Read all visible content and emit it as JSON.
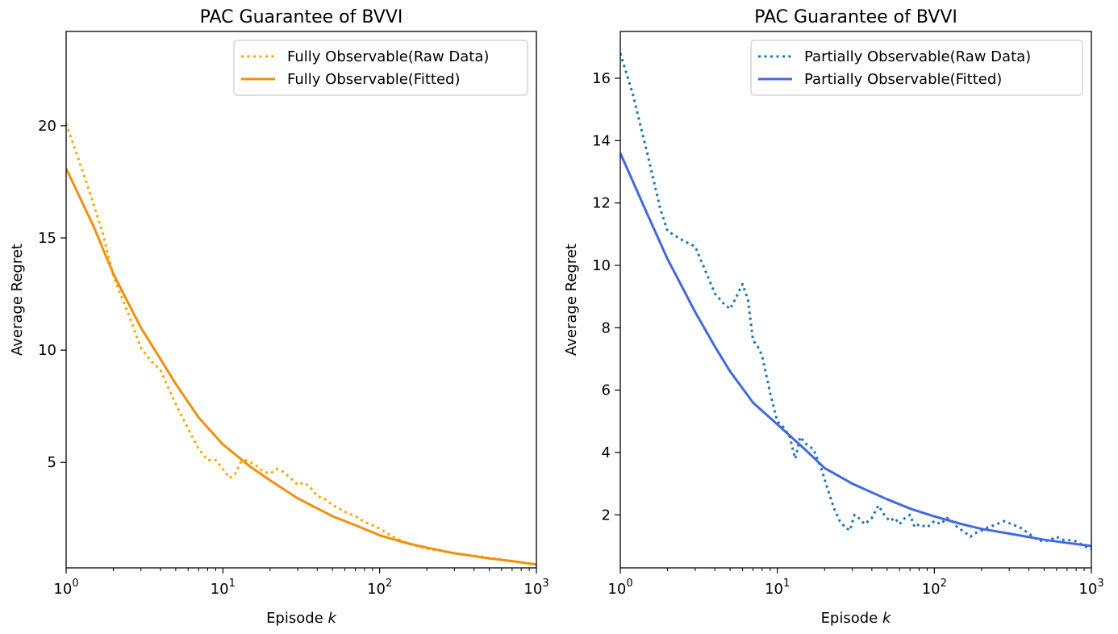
{
  "chart_data": [
    {
      "type": "line",
      "title": "PAC Guarantee of BVVI",
      "xlabel": "Episode k",
      "ylabel": "Average Regret",
      "xscale": "log",
      "xlim": [
        1,
        1000
      ],
      "ylim": [
        0.3,
        24.2
      ],
      "x_ticks": [
        {
          "value": 1,
          "base": "10",
          "exp": "0"
        },
        {
          "value": 10,
          "base": "10",
          "exp": "1"
        },
        {
          "value": 100,
          "base": "10",
          "exp": "2"
        },
        {
          "value": 1000,
          "base": "10",
          "exp": "3"
        }
      ],
      "y_ticks": [
        5,
        10,
        15,
        20
      ],
      "legend": "top-right",
      "series": [
        {
          "name": "Fully Observable(Raw Data)",
          "style": "dotted",
          "color": "#ffa500",
          "points": [
            [
              1,
              20.1
            ],
            [
              1.3,
              17.8
            ],
            [
              1.7,
              15.3
            ],
            [
              2,
              13.3
            ],
            [
              2.5,
              11.6
            ],
            [
              3,
              10.1
            ],
            [
              3.5,
              9.5
            ],
            [
              4,
              9.1
            ],
            [
              5,
              7.6
            ],
            [
              6,
              6.5
            ],
            [
              7,
              5.6
            ],
            [
              8,
              5.1
            ],
            [
              9,
              5.1
            ],
            [
              10,
              4.7
            ],
            [
              11,
              4.3
            ],
            [
              12,
              4.5
            ],
            [
              13,
              5.0
            ],
            [
              14,
              5.1
            ],
            [
              16,
              4.9
            ],
            [
              18,
              4.6
            ],
            [
              20,
              4.5
            ],
            [
              22,
              4.7
            ],
            [
              24,
              4.6
            ],
            [
              27,
              4.3
            ],
            [
              30,
              4.0
            ],
            [
              33,
              4.1
            ],
            [
              36,
              3.9
            ],
            [
              40,
              3.5
            ],
            [
              45,
              3.35
            ],
            [
              50,
              3.1
            ],
            [
              60,
              2.8
            ],
            [
              70,
              2.6
            ],
            [
              80,
              2.35
            ],
            [
              100,
              2.05
            ],
            [
              120,
              1.7
            ],
            [
              150,
              1.4
            ],
            [
              200,
              1.15
            ],
            [
              300,
              0.95
            ],
            [
              500,
              0.75
            ],
            [
              700,
              0.6
            ],
            [
              1000,
              0.45
            ]
          ]
        },
        {
          "name": "Fully Observable(Fitted)",
          "style": "solid",
          "color": "#f28f0e",
          "points": [
            [
              1,
              18.1
            ],
            [
              1.5,
              15.5
            ],
            [
              2,
              13.4
            ],
            [
              3,
              11.0
            ],
            [
              4,
              9.6
            ],
            [
              5,
              8.5
            ],
            [
              7,
              7.0
            ],
            [
              10,
              5.8
            ],
            [
              15,
              4.8
            ],
            [
              20,
              4.2
            ],
            [
              30,
              3.4
            ],
            [
              50,
              2.6
            ],
            [
              70,
              2.2
            ],
            [
              100,
              1.75
            ],
            [
              150,
              1.4
            ],
            [
              200,
              1.2
            ],
            [
              300,
              0.95
            ],
            [
              500,
              0.72
            ],
            [
              700,
              0.6
            ],
            [
              1000,
              0.45
            ]
          ]
        }
      ]
    },
    {
      "type": "line",
      "title": "PAC Guarantee of BVVI",
      "xlabel": "Episode k",
      "ylabel": "Average Regret",
      "xscale": "log",
      "xlim": [
        1,
        1000
      ],
      "ylim": [
        0.3,
        17.5
      ],
      "x_ticks": [
        {
          "value": 1,
          "base": "10",
          "exp": "0"
        },
        {
          "value": 10,
          "base": "10",
          "exp": "1"
        },
        {
          "value": 100,
          "base": "10",
          "exp": "2"
        },
        {
          "value": 1000,
          "base": "10",
          "exp": "3"
        }
      ],
      "y_ticks": [
        2,
        4,
        6,
        8,
        10,
        12,
        14,
        16
      ],
      "legend": "top-right",
      "series": [
        {
          "name": "Partially Observable(Raw Data)",
          "style": "dotted",
          "color": "#1f77b4",
          "points": [
            [
              1,
              16.8
            ],
            [
              1.2,
              15.5
            ],
            [
              1.5,
              13.5
            ],
            [
              1.8,
              11.8
            ],
            [
              2,
              11.1
            ],
            [
              2.5,
              10.8
            ],
            [
              3,
              10.6
            ],
            [
              3.5,
              9.8
            ],
            [
              4,
              9.1
            ],
            [
              4.5,
              8.8
            ],
            [
              5,
              8.6
            ],
            [
              5.5,
              9.0
            ],
            [
              6,
              9.4
            ],
            [
              6.5,
              8.9
            ],
            [
              7,
              7.6
            ],
            [
              7.5,
              7.4
            ],
            [
              8,
              7.1
            ],
            [
              9,
              5.9
            ],
            [
              10,
              5.0
            ],
            [
              11,
              4.8
            ],
            [
              12,
              4.5
            ],
            [
              13,
              3.8
            ],
            [
              14,
              4.5
            ],
            [
              15,
              4.3
            ],
            [
              17,
              4.1
            ],
            [
              19,
              3.5
            ],
            [
              21,
              2.8
            ],
            [
              23,
              2.2
            ],
            [
              25,
              1.8
            ],
            [
              27,
              1.6
            ],
            [
              29,
              1.5
            ],
            [
              31,
              2.0
            ],
            [
              33,
              1.9
            ],
            [
              36,
              1.7
            ],
            [
              40,
              1.9
            ],
            [
              44,
              2.3
            ],
            [
              48,
              2.0
            ],
            [
              52,
              1.8
            ],
            [
              56,
              1.9
            ],
            [
              60,
              1.7
            ],
            [
              65,
              1.9
            ],
            [
              70,
              2.0
            ],
            [
              75,
              1.6
            ],
            [
              80,
              1.7
            ],
            [
              90,
              1.6
            ],
            [
              100,
              1.8
            ],
            [
              110,
              1.7
            ],
            [
              120,
              1.9
            ],
            [
              130,
              1.8
            ],
            [
              140,
              1.6
            ],
            [
              150,
              1.5
            ],
            [
              160,
              1.4
            ],
            [
              170,
              1.3
            ],
            [
              180,
              1.4
            ],
            [
              200,
              1.5
            ],
            [
              220,
              1.6
            ],
            [
              250,
              1.7
            ],
            [
              280,
              1.8
            ],
            [
              310,
              1.7
            ],
            [
              350,
              1.6
            ],
            [
              400,
              1.4
            ],
            [
              450,
              1.2
            ],
            [
              500,
              1.15
            ],
            [
              550,
              1.2
            ],
            [
              600,
              1.3
            ],
            [
              650,
              1.2
            ],
            [
              700,
              1.2
            ],
            [
              800,
              1.15
            ],
            [
              900,
              1.0
            ],
            [
              1000,
              0.9
            ]
          ]
        },
        {
          "name": "Partially Observable(Fitted)",
          "style": "solid",
          "color": "#4169e1",
          "points": [
            [
              1,
              13.6
            ],
            [
              1.5,
              11.6
            ],
            [
              2,
              10.2
            ],
            [
              3,
              8.5
            ],
            [
              4,
              7.4
            ],
            [
              5,
              6.6
            ],
            [
              7,
              5.6
            ],
            [
              10,
              4.9
            ],
            [
              15,
              4.1
            ],
            [
              20,
              3.5
            ],
            [
              30,
              3.0
            ],
            [
              50,
              2.5
            ],
            [
              70,
              2.2
            ],
            [
              100,
              1.95
            ],
            [
              150,
              1.7
            ],
            [
              200,
              1.55
            ],
            [
              300,
              1.4
            ],
            [
              500,
              1.2
            ],
            [
              700,
              1.1
            ],
            [
              1000,
              1.0
            ]
          ]
        }
      ]
    }
  ]
}
